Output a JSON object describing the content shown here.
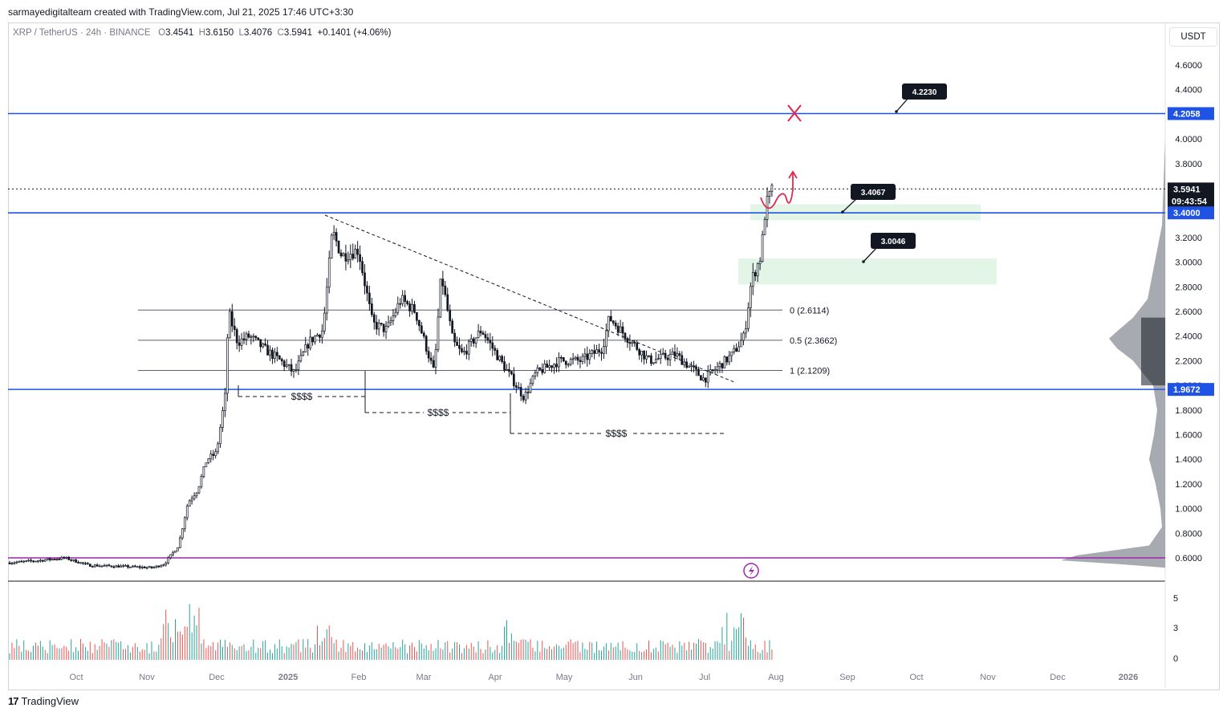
{
  "header": {
    "credit": "sarmayedigitalteam created with TradingView.com, Jul 21, 2025 17:46 UTC+3:30",
    "symbol": "XRP / TetherUS · 24h · BINANCE",
    "o_label": "O",
    "o": "3.4541",
    "h_label": "H",
    "h": "3.6150",
    "l_label": "L",
    "l": "3.4076",
    "c_label": "C",
    "c": "3.5941",
    "change": "+0.1401 (+4.06%)"
  },
  "unit_button": "USDT",
  "brand": {
    "logo": "17",
    "name": "TradingView"
  },
  "colors": {
    "level_line": "#1e53e5",
    "purple_line": "#9c27b0",
    "zone": "#e3f5e6",
    "annot_red": "#e0284f",
    "price_tag": "#131722",
    "up": "#26a69a",
    "down": "#ef5350"
  },
  "chart_data": {
    "type": "candlestick",
    "symbol": "XRP / TetherUS",
    "interval": "24h",
    "exchange": "BINANCE",
    "y_axis": {
      "ticks": [
        "4.6000",
        "4.4000",
        "4.2000",
        "4.0000",
        "3.8000",
        "3.6000",
        "3.4000",
        "3.2000",
        "3.0000",
        "2.8000",
        "2.6000",
        "2.4000",
        "2.2000",
        "2.0000",
        "1.8000",
        "1.6000",
        "1.4000",
        "1.2000",
        "1.0000",
        "0.8000",
        "0.6000"
      ],
      "range": [
        0.5,
        4.8
      ]
    },
    "x_axis": {
      "labels": [
        "Oct",
        "Nov",
        "Dec",
        "2025",
        "Feb",
        "Mar",
        "Apr",
        "May",
        "Jun",
        "Jul",
        "Aug",
        "Sep",
        "Oct",
        "Nov",
        "Dec",
        "2026"
      ]
    },
    "volume_axis": {
      "ticks": [
        "5",
        "3",
        "0"
      ]
    },
    "price_tags": [
      {
        "value": "4.2058"
      },
      {
        "value": "3.5941",
        "sub": "09:43:54"
      },
      {
        "value": "3.4000"
      },
      {
        "value": "1.9672"
      }
    ],
    "horizontal_levels": [
      4.2058,
      3.4,
      1.9672,
      0.6
    ],
    "fib_levels": [
      {
        "label": "0 (2.6114)",
        "value": 2.6114
      },
      {
        "label": "0.5 (2.3662)",
        "value": 2.3662
      },
      {
        "label": "1 (2.1209)",
        "value": 2.1209
      }
    ],
    "callouts": [
      "4.2230",
      "3.4067",
      "3.0046"
    ],
    "liquidity_labels": [
      "$$$$",
      "$$$$",
      "$$$$"
    ],
    "zones": [
      {
        "from": 3.34,
        "to": 3.47
      },
      {
        "from": 2.82,
        "to": 3.03
      }
    ],
    "price_path": [
      [
        "2024-09-01",
        0.56
      ],
      [
        "2024-09-15",
        0.58
      ],
      [
        "2024-09-25",
        0.6
      ],
      [
        "2024-10-05",
        0.54
      ],
      [
        "2024-10-20",
        0.53
      ],
      [
        "2024-11-01",
        0.52
      ],
      [
        "2024-11-06",
        0.55
      ],
      [
        "2024-11-12",
        0.7
      ],
      [
        "2024-11-16",
        1.05
      ],
      [
        "2024-11-20",
        1.15
      ],
      [
        "2024-11-24",
        1.4
      ],
      [
        "2024-11-28",
        1.45
      ],
      [
        "2024-12-02",
        1.95
      ],
      [
        "2024-12-03",
        2.6
      ],
      [
        "2024-12-07",
        2.35
      ],
      [
        "2024-12-12",
        2.4
      ],
      [
        "2024-12-18",
        2.3
      ],
      [
        "2024-12-25",
        2.2
      ],
      [
        "2024-12-31",
        2.1
      ],
      [
        "2025-01-06",
        2.35
      ],
      [
        "2025-01-12",
        2.45
      ],
      [
        "2025-01-16",
        3.25
      ],
      [
        "2025-01-20",
        3.05
      ],
      [
        "2025-01-27",
        3.1
      ],
      [
        "2025-02-02",
        2.5
      ],
      [
        "2025-02-08",
        2.45
      ],
      [
        "2025-02-14",
        2.7
      ],
      [
        "2025-02-20",
        2.6
      ],
      [
        "2025-02-28",
        2.1
      ],
      [
        "2025-03-03",
        2.9
      ],
      [
        "2025-03-08",
        2.35
      ],
      [
        "2025-03-12",
        2.25
      ],
      [
        "2025-03-20",
        2.45
      ],
      [
        "2025-03-28",
        2.2
      ],
      [
        "2025-04-07",
        1.9
      ],
      [
        "2025-04-12",
        2.1
      ],
      [
        "2025-04-22",
        2.2
      ],
      [
        "2025-05-01",
        2.2
      ],
      [
        "2025-05-10",
        2.3
      ],
      [
        "2025-05-13",
        2.55
      ],
      [
        "2025-05-20",
        2.4
      ],
      [
        "2025-05-30",
        2.2
      ],
      [
        "2025-06-10",
        2.25
      ],
      [
        "2025-06-22",
        2.05
      ],
      [
        "2025-06-28",
        2.15
      ],
      [
        "2025-07-04",
        2.25
      ],
      [
        "2025-07-09",
        2.4
      ],
      [
        "2025-07-12",
        2.85
      ],
      [
        "2025-07-16",
        3.05
      ],
      [
        "2025-07-18",
        3.45
      ],
      [
        "2025-07-20",
        3.55
      ],
      [
        "2025-07-21",
        3.5941
      ]
    ],
    "volume_bars": 200
  }
}
